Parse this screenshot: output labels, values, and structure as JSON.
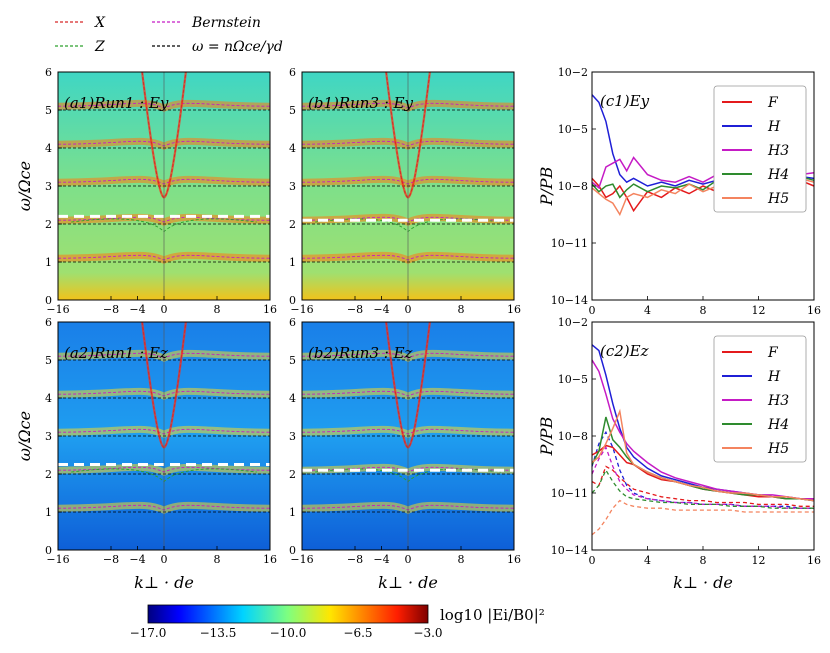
{
  "legend_top": [
    {
      "label": "X",
      "color": "#d62728"
    },
    {
      "label": "Z",
      "color": "#2ca02c"
    },
    {
      "label": "Bernstein",
      "color": "#c51bc5"
    },
    {
      "label": "ω = nΩce/γd",
      "color": "#000000"
    }
  ],
  "spectrograms": [
    {
      "label": "(a1)Run1 : Ey",
      "white_line": 2.2
    },
    {
      "label": "(b1)Run3 : Ey",
      "white_line": 2.1
    },
    {
      "label": "(a2)Run1 : Ez",
      "white_line": 2.25
    },
    {
      "label": "(b2)Run3 : Ez",
      "white_line": 2.1
    }
  ],
  "spec_axes": {
    "xlabel": "k⊥ · de",
    "ylabel": "ω/Ωce",
    "xticks": [
      "−16",
      "−8",
      "−4",
      "0",
      "8",
      "16"
    ],
    "yticks": [
      "0",
      "1",
      "2",
      "3",
      "4",
      "5",
      "6"
    ]
  },
  "colorbar": {
    "label": "log10 |Ei/B0|²",
    "ticks": [
      "−17.0",
      "−13.5",
      "−10.0",
      "−6.5",
      "−3.0"
    ],
    "vmin": -17.0,
    "vmax": -3.0
  },
  "chart_data": [
    {
      "type": "line",
      "title": "(c1)Ey",
      "xlabel": "k⊥ · de",
      "ylabel": "P/PB",
      "xlim": [
        0,
        16
      ],
      "ylim_log10": [
        -14,
        -2
      ],
      "xticks": [
        "0",
        "4",
        "8",
        "12",
        "16"
      ],
      "yticks": [
        "10−2",
        "10−5",
        "10−8",
        "10−11",
        "10−14"
      ],
      "k": [
        0,
        0.5,
        1,
        1.5,
        2,
        2.5,
        3,
        4,
        5,
        6,
        7,
        8,
        9,
        10,
        11,
        12,
        13,
        14,
        15,
        16
      ],
      "series": [
        {
          "name": "F",
          "color": "#e41a1c",
          "log10": [
            -7.6,
            -8.0,
            -8.6,
            -8.4,
            -8.0,
            -8.6,
            -9.3,
            -8.3,
            -8.6,
            -8.1,
            -8.4,
            -8.0,
            -8.3,
            -7.5,
            -7.9,
            -7.6,
            -7.9,
            -7.4,
            -7.7,
            -8.0
          ]
        },
        {
          "name": "H",
          "color": "#1f1fd6",
          "log10": [
            -3.2,
            -3.6,
            -4.6,
            -6.3,
            -7.4,
            -7.8,
            -7.6,
            -8.0,
            -7.8,
            -8.0,
            -7.7,
            -7.9,
            -7.7,
            -7.8,
            -7.4,
            -7.7,
            -7.5,
            -7.4,
            -7.5,
            -7.6
          ]
        },
        {
          "name": "H3",
          "color": "#c51bc5",
          "log10": [
            -7.8,
            -8.1,
            -7.0,
            -6.8,
            -6.6,
            -7.2,
            -6.5,
            -7.4,
            -7.7,
            -7.8,
            -7.5,
            -7.8,
            -7.4,
            -7.7,
            -7.2,
            -7.6,
            -7.3,
            -7.2,
            -7.4,
            -7.3
          ]
        },
        {
          "name": "H4",
          "color": "#2e8b2e",
          "log10": [
            -7.9,
            -8.3,
            -8.0,
            -7.9,
            -8.6,
            -8.2,
            -7.9,
            -8.3,
            -8.0,
            -8.1,
            -7.9,
            -8.2,
            -7.7,
            -8.0,
            -7.7,
            -7.9,
            -7.6,
            -7.8,
            -7.5,
            -7.7
          ]
        },
        {
          "name": "H5",
          "color": "#f4845f",
          "log10": [
            -8.1,
            -8.4,
            -8.7,
            -8.9,
            -9.5,
            -8.6,
            -8.4,
            -8.6,
            -8.2,
            -8.4,
            -7.9,
            -8.3,
            -8.0,
            -8.1,
            -7.8,
            -7.9,
            -7.6,
            -7.8,
            -7.6,
            -7.8
          ]
        }
      ]
    },
    {
      "type": "line",
      "title": "(c2)Ez",
      "xlabel": "k⊥ · de",
      "ylabel": "P/PB",
      "xlim": [
        0,
        16
      ],
      "ylim_log10": [
        -14,
        -2
      ],
      "xticks": [
        "0",
        "4",
        "8",
        "12",
        "16"
      ],
      "yticks": [
        "10−2",
        "10−5",
        "10−8",
        "10−11",
        "10−14"
      ],
      "k": [
        0,
        0.5,
        1,
        1.5,
        2,
        2.5,
        3,
        4,
        5,
        6,
        7,
        8,
        9,
        10,
        11,
        12,
        13,
        14,
        15,
        16
      ],
      "series": [
        {
          "name": "F",
          "color": "#e41a1c",
          "log10": [
            -9.0,
            -8.8,
            -8.5,
            -8.6,
            -9.0,
            -9.4,
            -9.5,
            -10.0,
            -10.3,
            -10.4,
            -10.6,
            -10.8,
            -10.9,
            -11.0,
            -11.1,
            -11.2,
            -11.2,
            -11.3,
            -11.3,
            -11.4
          ]
        },
        {
          "name": "H",
          "color": "#1f1fd6",
          "log10": [
            -3.2,
            -3.5,
            -4.8,
            -6.3,
            -7.6,
            -8.6,
            -9.1,
            -9.7,
            -10.1,
            -10.3,
            -10.5,
            -10.7,
            -10.8,
            -10.9,
            -11.0,
            -11.1,
            -11.2,
            -11.2,
            -11.3,
            -11.4
          ]
        },
        {
          "name": "H3",
          "color": "#c51bc5",
          "log10": [
            -4.0,
            -4.6,
            -5.8,
            -7.1,
            -7.8,
            -8.4,
            -8.8,
            -9.4,
            -9.9,
            -10.2,
            -10.4,
            -10.6,
            -10.8,
            -10.9,
            -11.0,
            -11.1,
            -11.1,
            -11.2,
            -11.3,
            -11.3
          ]
        },
        {
          "name": "H4",
          "color": "#2e8b2e",
          "log10": [
            -9.5,
            -8.8,
            -7.0,
            -8.2,
            -8.6,
            -9.1,
            -9.5,
            -9.9,
            -10.2,
            -10.4,
            -10.6,
            -10.8,
            -10.9,
            -11.0,
            -11.1,
            -11.1,
            -11.2,
            -11.3,
            -11.3,
            -11.4
          ]
        },
        {
          "name": "H5",
          "color": "#f4845f",
          "log10": [
            -9.4,
            -9.1,
            -8.4,
            -7.6,
            -6.7,
            -8.9,
            -9.5,
            -9.9,
            -10.2,
            -10.4,
            -10.6,
            -10.7,
            -10.9,
            -11.0,
            -11.0,
            -11.1,
            -11.2,
            -11.2,
            -11.3,
            -11.4
          ]
        }
      ],
      "dashed_series": [
        {
          "name": "F (dashed)",
          "color": "#e41a1c",
          "log10": [
            -10.4,
            -10.6,
            -9.6,
            -9.8,
            -10.2,
            -10.5,
            -10.8,
            -11.0,
            -11.2,
            -11.3,
            -11.4,
            -11.4,
            -11.5,
            -11.5,
            -11.5,
            -11.6,
            -11.6,
            -11.6,
            -11.7,
            -11.7
          ]
        },
        {
          "name": "H (dashed)",
          "color": "#1f1fd6",
          "log10": [
            -9.6,
            -8.4,
            -7.8,
            -8.6,
            -9.8,
            -10.6,
            -11.0,
            -11.3,
            -11.4,
            -11.5,
            -11.5,
            -11.6,
            -11.6,
            -11.6,
            -11.7,
            -11.7,
            -11.7,
            -11.7,
            -11.8,
            -11.8
          ]
        },
        {
          "name": "H3 (dashed)",
          "color": "#c51bc5",
          "log10": [
            -10.0,
            -9.2,
            -8.6,
            -9.6,
            -10.4,
            -10.8,
            -11.1,
            -11.3,
            -11.4,
            -11.5,
            -11.5,
            -11.6,
            -11.6,
            -11.6,
            -11.7,
            -11.7,
            -11.7,
            -11.8,
            -11.8,
            -11.8
          ]
        },
        {
          "name": "H4 (dashed)",
          "color": "#2e8b2e",
          "log10": [
            -11.0,
            -10.6,
            -9.8,
            -10.4,
            -10.9,
            -11.2,
            -11.3,
            -11.4,
            -11.5,
            -11.5,
            -11.6,
            -11.6,
            -11.6,
            -11.7,
            -11.7,
            -11.7,
            -11.8,
            -11.8,
            -11.8,
            -11.8
          ]
        },
        {
          "name": "H5 (dashed)",
          "color": "#f4845f",
          "log10": [
            -13.2,
            -12.9,
            -12.4,
            -11.8,
            -11.4,
            -11.6,
            -11.7,
            -11.8,
            -11.8,
            -11.9,
            -11.9,
            -11.9,
            -11.9,
            -11.9,
            -12.0,
            -12.0,
            -12.0,
            -12.0,
            -12.0,
            -12.0
          ]
        }
      ]
    }
  ]
}
